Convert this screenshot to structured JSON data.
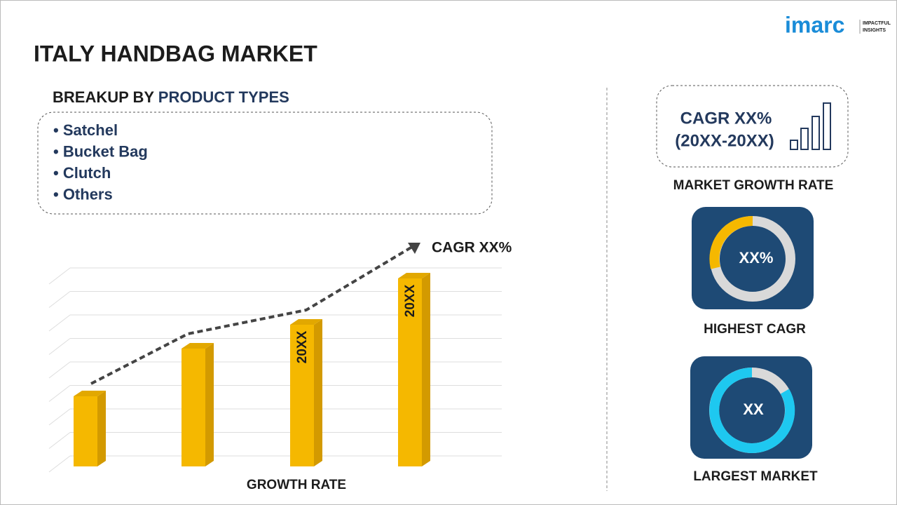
{
  "logo": {
    "name": "imarc",
    "tagline": [
      "IMPACTFUL",
      "INSIGHTS"
    ]
  },
  "title": "ITALY HANDBAG MARKET",
  "breakup": {
    "label": "BREAKUP BY",
    "highlight": "PRODUCT TYPES",
    "items": [
      "Satchel",
      "Bucket Bag",
      "Clutch",
      "Others"
    ]
  },
  "growth_chart": {
    "bar_labels": [
      "20XX",
      "20XX"
    ],
    "trend_label": "CAGR XX%",
    "x_label": "GROWTH RATE"
  },
  "market_growth": {
    "cagr": "CAGR XX%",
    "period": "(20XX-20XX)",
    "label": "MARKET GROWTH RATE"
  },
  "highest_cagr": {
    "value": "XX%",
    "label": "HIGHEST CAGR"
  },
  "largest_market": {
    "value": "XX",
    "label": "LARGEST MARKET"
  }
}
